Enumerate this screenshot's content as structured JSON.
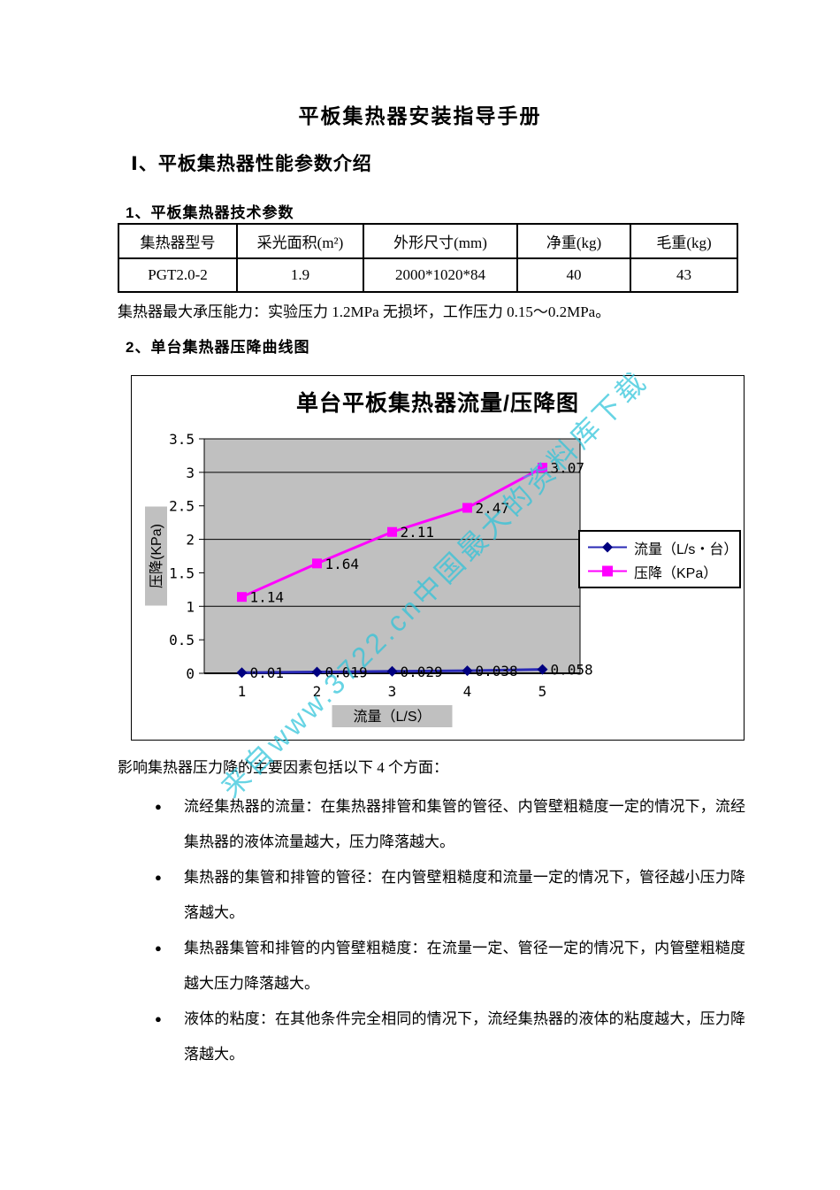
{
  "page": {
    "title": "平板集热器安装指导手册",
    "section1_heading": "Ⅰ、平板集热器性能参数介绍",
    "sub1_heading": "1、平板集热器技术参数",
    "sub2_heading": "2、单台集热器压降曲线图",
    "pressure_note": "集热器最大承压能力：实验压力 1.2MPa 无损坏，工作压力 0.15～0.2MPa。",
    "factors_intro": "影响集热器压力降的主要因素包括以下 4 个方面：",
    "bullet_char": "●",
    "factors": [
      "流经集热器的流量：在集热器排管和集管的管径、内管壁粗糙度一定的情况下，流经集热器的液体流量越大，压力降落越大。",
      "集热器的集管和排管的管径：在内管壁粗糙度和流量一定的情况下，管径越小压力降落越大。",
      "集热器集管和排管的内管壁粗糙度：在流量一定、管径一定的情况下，内管壁粗糙度越大压力降落越大。",
      "液体的粘度：在其他条件完全相同的情况下，流经集热器的液体的粘度越大，压力降落越大。"
    ]
  },
  "spec_table": {
    "headers": [
      "集热器型号",
      "采光面积(m²)",
      "外形尺寸(mm)",
      "净重(kg)",
      "毛重(kg)"
    ],
    "rows": [
      [
        "PGT2.0-2",
        "1.9",
        "2000*1020*84",
        "40",
        "43"
      ]
    ]
  },
  "watermark": {
    "text": "来自www.3722.cn中国最大的资料库下载",
    "color": "#2ec4da"
  },
  "chart_data": {
    "type": "line",
    "title": "单台平板集热器流量/压降图",
    "categories": [
      "1",
      "2",
      "3",
      "4",
      "5"
    ],
    "xlabel": "流量（L/S）",
    "ylabel": "压降(KPa)",
    "ylim": [
      0,
      3.5
    ],
    "ytick_step": 0.5,
    "major_gridlines": [
      1,
      2,
      3
    ],
    "plot_bg": "#c0c0c0",
    "axis_color": "#000000",
    "legend_position": "right",
    "series": [
      {
        "name": "流量（L/s・台）",
        "values": [
          0.01,
          0.019,
          0.029,
          0.038,
          0.058
        ],
        "labels": [
          "0.01",
          "0.019",
          "0.029",
          "0.038",
          "0.058"
        ],
        "color": "#2929b5",
        "marker_color": "#000080",
        "marker": "diamond"
      },
      {
        "name": "压降（KPa）",
        "values": [
          1.14,
          1.64,
          2.11,
          2.47,
          3.07
        ],
        "labels": [
          "1.14",
          "1.64",
          "2.11",
          "2.47",
          "3.07"
        ],
        "color": "#ff00ff",
        "marker_color": "#ff00ff",
        "marker": "square"
      }
    ]
  }
}
